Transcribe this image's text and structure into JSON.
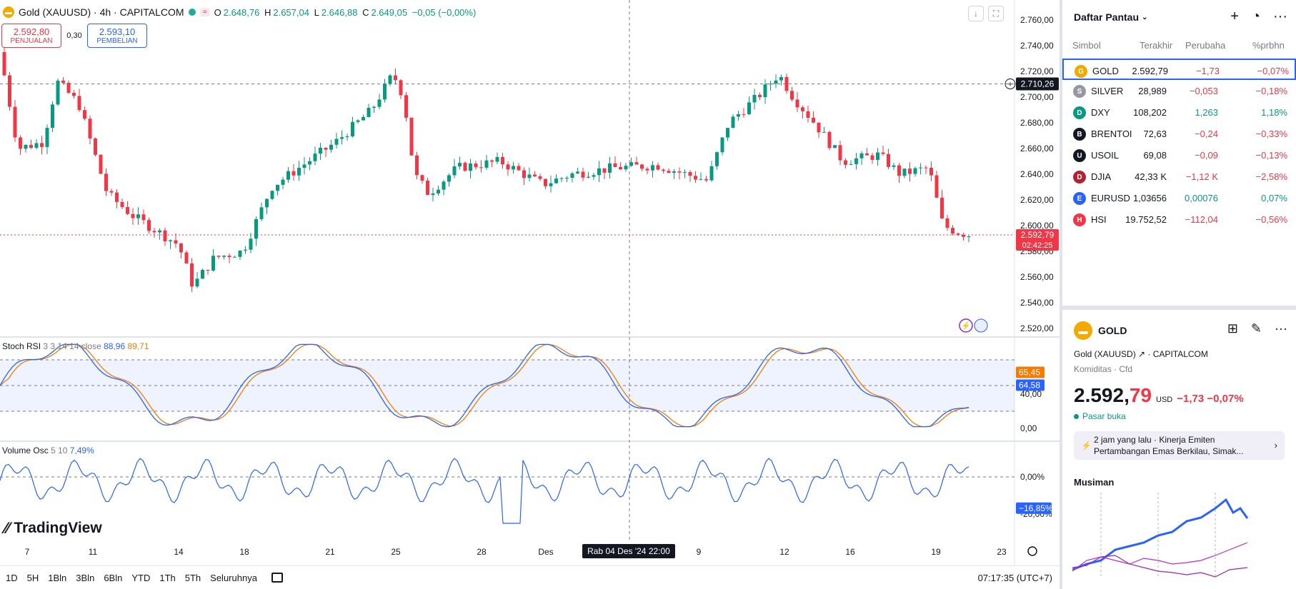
{
  "header": {
    "symbol_icon": "gold-bars-icon",
    "title": "Gold (XAUUSD) · 4h · CAPITALCOM",
    "live_badge": "≈",
    "ohlc": [
      {
        "k": "O",
        "v": "2.648,76"
      },
      {
        "k": "H",
        "v": "2.657,04"
      },
      {
        "k": "L",
        "v": "2.646,88"
      },
      {
        "k": "C",
        "v": "2.649,05"
      }
    ],
    "change": "−0,05 (−0,00%)"
  },
  "trade": {
    "sell_price": "2.592,80",
    "sell_label": "PENJUALAN",
    "spread": "0,30",
    "buy_price": "2.593,10",
    "buy_label": "PEMBELIAN"
  },
  "price_axis": [
    "2.760,00",
    "2.740,00",
    "2.720,00",
    "2.700,00",
    "2.680,00",
    "2.660,00",
    "2.640,00",
    "2.620,00",
    "2.600,00",
    "2.580,00",
    "2.560,00",
    "2.540,00",
    "2.520,00"
  ],
  "crosshair_price": "2.710,26",
  "last_price": {
    "price": "2.592,79",
    "countdown": "02:42:25"
  },
  "stoch_rsi": {
    "name": "Stoch RSI",
    "params": "3 3 14 14 close",
    "k": "88,96",
    "d": "89,71",
    "axis": [
      "40,00",
      "0,00"
    ],
    "tag_d": "65,45",
    "tag_k": "64,58"
  },
  "volume_osc": {
    "name": "Volume Osc",
    "params": "5 10",
    "value": "7,49%",
    "axis": [
      "0,00%",
      "-20,00%"
    ],
    "tag": "−16,85%"
  },
  "time_axis": [
    "7",
    "11",
    "14",
    "18",
    "21",
    "25",
    "28",
    "Des",
    "9",
    "12",
    "16",
    "19",
    "23"
  ],
  "crosshair_time": "Rab 04 Des '24   22:00",
  "logo": "TradingView",
  "ranges": [
    "1D",
    "5H",
    "1Bln",
    "3Bln",
    "6Bln",
    "YTD",
    "1Th",
    "5Th",
    "Seluruhnya"
  ],
  "clock": "07:17:35 (UTC+7)",
  "colors": {
    "up": "#089981",
    "down": "#f23645",
    "accent": "#2962ff",
    "stoch_d": "#f57c00"
  },
  "watchlist": {
    "title": "Daftar Pantau",
    "columns": [
      "Simbol",
      "Terakhir",
      "Perubaha",
      "%prbhn"
    ],
    "rows": [
      {
        "symbol": "GOLD",
        "last": "2.592,79",
        "change": "−1,73",
        "pct": "−0,07%",
        "dir": "dn",
        "icon": "gold-bars-icon",
        "icon_color": "#f2a900"
      },
      {
        "symbol": "SILVER",
        "last": "28,989",
        "change": "−0,053",
        "pct": "−0,18%",
        "dir": "dn",
        "icon": "silver-bars-icon",
        "icon_color": "#9598a1"
      },
      {
        "symbol": "DXY",
        "last": "108,202",
        "change": "1,263",
        "pct": "1,18%",
        "dir": "up",
        "icon": "dollar-icon",
        "icon_color": "#089981"
      },
      {
        "symbol": "BRENTOI",
        "last": "72,63",
        "change": "−0,24",
        "pct": "−0,33%",
        "dir": "dn",
        "icon": "oil-drop-icon",
        "icon_color": "#131722"
      },
      {
        "symbol": "USOIL",
        "last": "69,08",
        "change": "−0,09",
        "pct": "−0,13%",
        "dir": "dn",
        "icon": "oil-drop-icon",
        "icon_color": "#131722"
      },
      {
        "symbol": "DJIA",
        "last": "42,33 K",
        "change": "−1,12 K",
        "pct": "−2,58%",
        "dir": "dn",
        "icon": "us-flag-icon",
        "icon_color": "#b22234"
      },
      {
        "symbol": "EURUSD",
        "last": "1,03656",
        "change": "0,00076",
        "pct": "0,07%",
        "dir": "up",
        "icon": "eu-us-flag-icon",
        "icon_color": "#2962ff"
      },
      {
        "symbol": "HSI",
        "last": "19.752,52",
        "change": "−112,04",
        "pct": "−0,56%",
        "dir": "dn",
        "icon": "hsi-icon",
        "icon_color": "#f23645"
      }
    ]
  },
  "detail": {
    "symbol": "GOLD",
    "name_line": "Gold (XAUUSD)",
    "exchange": "CAPITALCOM",
    "category": "Komiditas · Cfd",
    "price_main": "2.592,",
    "price_dec": "79",
    "currency": "USD",
    "change": "−1,73  −0,07%",
    "market": "Pasar buka",
    "news": "2 jam yang lalu · Kinerja Emiten Pertambangan Emas Berkilau, Simak...",
    "seasonal": "Musiman"
  }
}
